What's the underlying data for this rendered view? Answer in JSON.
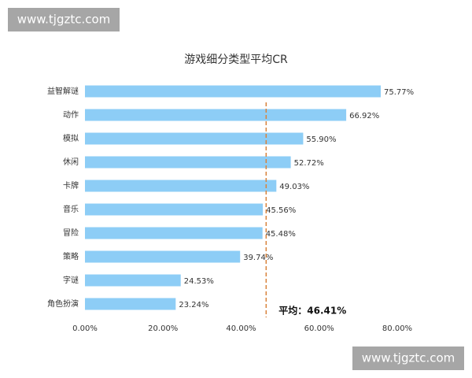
{
  "watermark_top": "www.tjgztc.com",
  "watermark_bottom": "www.tjgztc.com",
  "chart_data": {
    "type": "bar",
    "orientation": "horizontal",
    "title": "游戏细分类型平均CR",
    "categories": [
      "益智解谜",
      "动作",
      "模拟",
      "休闲",
      "卡牌",
      "音乐",
      "冒险",
      "策略",
      "字谜",
      "角色扮演"
    ],
    "values": [
      75.77,
      66.92,
      55.9,
      52.72,
      49.03,
      45.56,
      45.48,
      39.74,
      24.53,
      23.24
    ],
    "value_labels": [
      "75.77%",
      "66.92%",
      "55.90%",
      "52.72%",
      "49.03%",
      "45.56%",
      "45.48%",
      "39.74%",
      "24.53%",
      "23.24%"
    ],
    "color": "#8dcdf6",
    "xlim": [
      0,
      80
    ],
    "xticks": [
      {
        "value": 0,
        "label": "0.00%"
      },
      {
        "value": 20,
        "label": "20.00%"
      },
      {
        "value": 40,
        "label": "40.00%"
      },
      {
        "value": 60,
        "label": "60.00%"
      },
      {
        "value": 80,
        "label": "80.00%"
      }
    ],
    "average": {
      "value": 46.41,
      "label": "平均：46.41%",
      "color": "#d9823b"
    }
  }
}
